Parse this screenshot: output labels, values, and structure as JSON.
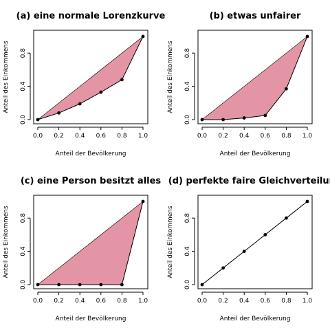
{
  "colors": {
    "fill": "#e495a5",
    "ink": "#000000",
    "background": "#ffffff"
  },
  "chart_data": [
    {
      "type": "line",
      "title": "(a) eine normale Lorenzkurve",
      "xlabel": "Anteil der Bevölkerung",
      "ylabel": "Anteil des Einkommens",
      "x": [
        0,
        0.2,
        0.4,
        0.6,
        0.8,
        1.0
      ],
      "y": [
        0,
        0.08,
        0.19,
        0.33,
        0.48,
        1.0
      ],
      "xlim": [
        0,
        1
      ],
      "ylim": [
        0,
        1
      ],
      "xticks": [
        "0.0",
        "0.2",
        "0.4",
        "0.6",
        "0.8",
        "1.0"
      ],
      "yticks": [
        "0.0",
        "0.4",
        "0.8"
      ],
      "shaded": true,
      "grid": false
    },
    {
      "type": "line",
      "title": "(b) etwas unfairer",
      "xlabel": "Anteil der Bevölkerung",
      "ylabel": "Anteil des Einkommens",
      "x": [
        0,
        0.2,
        0.4,
        0.6,
        0.8,
        1.0
      ],
      "y": [
        0,
        0.0,
        0.02,
        0.05,
        0.37,
        1.0
      ],
      "xlim": [
        0,
        1
      ],
      "ylim": [
        0,
        1
      ],
      "xticks": [
        "0.0",
        "0.2",
        "0.4",
        "0.6",
        "0.8",
        "1.0"
      ],
      "yticks": [
        "0.0",
        "0.4",
        "0.8"
      ],
      "shaded": true,
      "grid": false
    },
    {
      "type": "line",
      "title": "(c) eine Person besitzt alles",
      "xlabel": "Anteil der Bevölkerung",
      "ylabel": "Anteil des Einkommens",
      "x": [
        0,
        0.2,
        0.4,
        0.6,
        0.8,
        1.0
      ],
      "y": [
        0,
        0,
        0,
        0,
        0,
        1.0
      ],
      "xlim": [
        0,
        1
      ],
      "ylim": [
        0,
        1
      ],
      "xticks": [
        "0.0",
        "0.2",
        "0.4",
        "0.6",
        "0.8",
        "1.0"
      ],
      "yticks": [
        "0.0",
        "0.4",
        "0.8"
      ],
      "shaded": true,
      "grid": false
    },
    {
      "type": "line",
      "title": "(d) perfekte faire Gleichverteilung",
      "xlabel": "Anteil der Bevölkerung",
      "ylabel": "Anteil des Einkommens",
      "x": [
        0,
        0.2,
        0.4,
        0.6,
        0.8,
        1.0
      ],
      "y": [
        0,
        0.2,
        0.4,
        0.6,
        0.8,
        1.0
      ],
      "xlim": [
        0,
        1
      ],
      "ylim": [
        0,
        1
      ],
      "xticks": [
        "0.0",
        "0.2",
        "0.4",
        "0.6",
        "0.8",
        "1.0"
      ],
      "yticks": [
        "0.0",
        "0.4",
        "0.8"
      ],
      "shaded": false,
      "grid": false
    }
  ]
}
